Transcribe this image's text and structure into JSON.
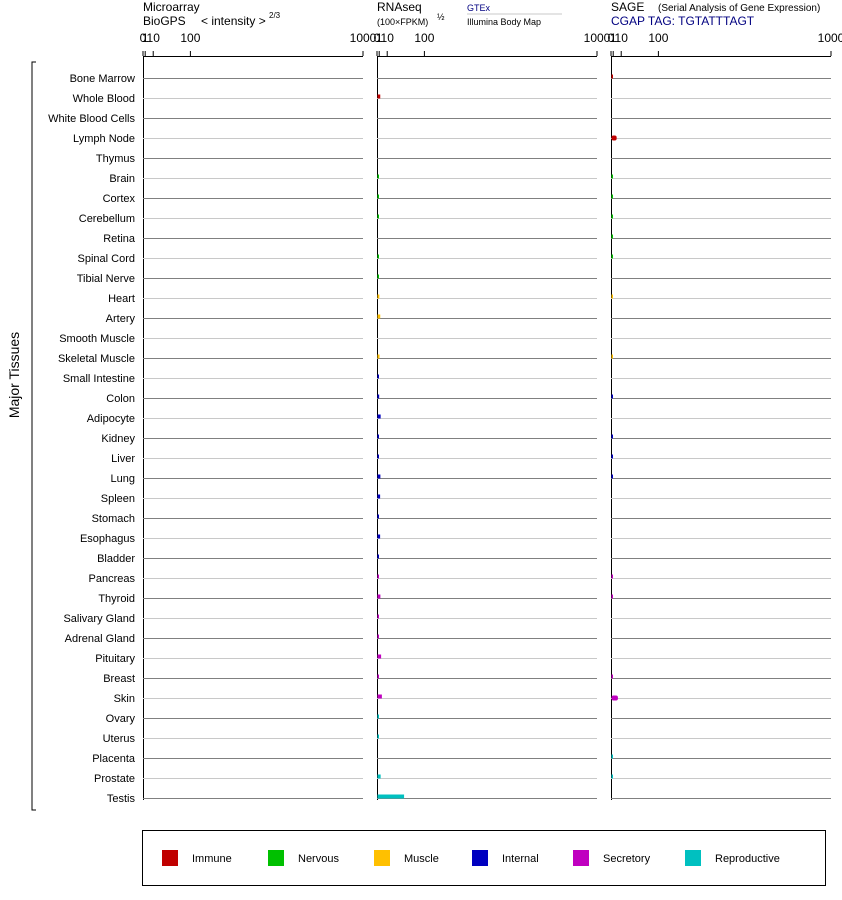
{
  "header": {
    "microarray": {
      "line1": "Microarray",
      "line2a": "BioGPS",
      "line2b": "< intensity >",
      "exponent": "2/3"
    },
    "rnaseq": {
      "line1": "RNAseq",
      "line2": "(100×FPKM)",
      "exponent": "½",
      "link_top": "GTEx",
      "link_bottom": "Illumina Body Map"
    },
    "sage": {
      "line1a": "SAGE",
      "line1b": "(Serial Analysis of Gene Expression)",
      "line2": "CGAP TAG: TGTATTTAGT"
    }
  },
  "ylabel": "Major Tissues",
  "colors": {
    "Immune": "#c00000",
    "Nervous": "#00c000",
    "Muscle": "#ffc000",
    "Internal": "#0000c0",
    "Secretory": "#c000c0",
    "Reproductive": "#00c0c0",
    "header_link": "#000080",
    "grid_dark": "#808080",
    "grid_light": "#c8c8c8"
  },
  "legend": {
    "items": [
      "Immune",
      "Nervous",
      "Muscle",
      "Internal",
      "Secretory",
      "Reproductive"
    ]
  },
  "chart_data": [
    {
      "type": "bar",
      "title": "Microarray BioGPS",
      "xscale": "power 2/3",
      "xticks": [
        "0",
        "1",
        "10",
        "100",
        "1000"
      ],
      "xlim": [
        0,
        1000
      ],
      "categories": [
        "Bone Marrow",
        "Whole Blood",
        "White Blood Cells",
        "Lymph Node",
        "Thymus",
        "Brain",
        "Cortex",
        "Cerebellum",
        "Retina",
        "Spinal Cord",
        "Tibial Nerve",
        "Heart",
        "Artery",
        "Smooth Muscle",
        "Skeletal Muscle",
        "Small Intestine",
        "Colon",
        "Adipocyte",
        "Kidney",
        "Liver",
        "Lung",
        "Spleen",
        "Stomach",
        "Esophagus",
        "Bladder",
        "Pancreas",
        "Thyroid",
        "Salivary Gland",
        "Adrenal Gland",
        "Pituitary",
        "Breast",
        "Skin",
        "Ovary",
        "Uterus",
        "Placenta",
        "Prostate",
        "Testis"
      ],
      "groups": [
        "Immune",
        "Immune",
        "Immune",
        "Immune",
        "Immune",
        "Nervous",
        "Nervous",
        "Nervous",
        "Nervous",
        "Nervous",
        "Nervous",
        "Muscle",
        "Muscle",
        "Muscle",
        "Muscle",
        "Internal",
        "Internal",
        "Internal",
        "Internal",
        "Internal",
        "Internal",
        "Internal",
        "Internal",
        "Internal",
        "Internal",
        "Secretory",
        "Secretory",
        "Secretory",
        "Secretory",
        "Secretory",
        "Secretory",
        "Secretory",
        "Reproductive",
        "Reproductive",
        "Reproductive",
        "Reproductive",
        "Reproductive"
      ],
      "values": [
        null,
        null,
        null,
        null,
        null,
        null,
        null,
        null,
        null,
        null,
        null,
        null,
        null,
        null,
        null,
        null,
        null,
        null,
        null,
        null,
        null,
        null,
        null,
        null,
        null,
        null,
        null,
        null,
        null,
        null,
        null,
        null,
        null,
        null,
        null,
        null,
        null
      ]
    },
    {
      "type": "bar",
      "title": "RNAseq",
      "xscale": "power 2/3",
      "xticks": [
        "0",
        "1",
        "10",
        "100",
        "1000"
      ],
      "xlim": [
        0,
        1000
      ],
      "categories": [
        "Bone Marrow",
        "Whole Blood",
        "White Blood Cells",
        "Lymph Node",
        "Thymus",
        "Brain",
        "Cortex",
        "Cerebellum",
        "Retina",
        "Spinal Cord",
        "Tibial Nerve",
        "Heart",
        "Artery",
        "Smooth Muscle",
        "Skeletal Muscle",
        "Small Intestine",
        "Colon",
        "Adipocyte",
        "Kidney",
        "Liver",
        "Lung",
        "Spleen",
        "Stomach",
        "Esophagus",
        "Bladder",
        "Pancreas",
        "Thyroid",
        "Salivary Gland",
        "Adrenal Gland",
        "Pituitary",
        "Breast",
        "Skin",
        "Ovary",
        "Uterus",
        "Placenta",
        "Prostate",
        "Testis"
      ],
      "groups": [
        "Immune",
        "Immune",
        "Immune",
        "Immune",
        "Immune",
        "Nervous",
        "Nervous",
        "Nervous",
        "Nervous",
        "Nervous",
        "Nervous",
        "Muscle",
        "Muscle",
        "Muscle",
        "Muscle",
        "Internal",
        "Internal",
        "Internal",
        "Internal",
        "Internal",
        "Internal",
        "Internal",
        "Internal",
        "Internal",
        "Internal",
        "Secretory",
        "Secretory",
        "Secretory",
        "Secretory",
        "Secretory",
        "Secretory",
        "Secretory",
        "Reproductive",
        "Reproductive",
        "Reproductive",
        "Reproductive",
        "Reproductive"
      ],
      "values": [
        null,
        1.4,
        null,
        null,
        null,
        0.45,
        0.02,
        0.02,
        null,
        0.02,
        0.02,
        0.75,
        1.4,
        null,
        0.85,
        0.03,
        0.65,
        1.7,
        0.03,
        0.03,
        1.5,
        1.3,
        0.02,
        1.3,
        0.03,
        0.03,
        1.5,
        0.03,
        0.02,
        2.1,
        0.03,
        2.8,
        0.02,
        0.02,
        null,
        1.7,
        42
      ]
    },
    {
      "type": "bar",
      "title": "SAGE",
      "xscale": "power 2/3",
      "xticks": [
        "0",
        "1",
        "10",
        "100",
        "1000"
      ],
      "xlim": [
        0,
        1000
      ],
      "categories": [
        "Bone Marrow",
        "Whole Blood",
        "White Blood Cells",
        "Lymph Node",
        "Thymus",
        "Brain",
        "Cortex",
        "Cerebellum",
        "Retina",
        "Spinal Cord",
        "Tibial Nerve",
        "Heart",
        "Artery",
        "Smooth Muscle",
        "Skeletal Muscle",
        "Small Intestine",
        "Colon",
        "Adipocyte",
        "Kidney",
        "Liver",
        "Lung",
        "Spleen",
        "Stomach",
        "Esophagus",
        "Bladder",
        "Pancreas",
        "Thyroid",
        "Salivary Gland",
        "Adrenal Gland",
        "Pituitary",
        "Breast",
        "Skin",
        "Ovary",
        "Uterus",
        "Placenta",
        "Prostate",
        "Testis"
      ],
      "groups": [
        "Immune",
        "Immune",
        "Immune",
        "Immune",
        "Immune",
        "Nervous",
        "Nervous",
        "Nervous",
        "Nervous",
        "Nervous",
        "Nervous",
        "Muscle",
        "Muscle",
        "Muscle",
        "Muscle",
        "Internal",
        "Internal",
        "Internal",
        "Internal",
        "Internal",
        "Internal",
        "Internal",
        "Internal",
        "Internal",
        "Internal",
        "Secretory",
        "Secretory",
        "Secretory",
        "Secretory",
        "Secretory",
        "Secretory",
        "Secretory",
        "Reproductive",
        "Reproductive",
        "Reproductive",
        "Reproductive",
        "Reproductive"
      ],
      "values": [
        0.02,
        null,
        null,
        3.6,
        null,
        0.02,
        0.02,
        0.02,
        0.02,
        0.02,
        null,
        0.005,
        null,
        null,
        0.005,
        null,
        0.02,
        null,
        0.02,
        0.02,
        0.02,
        null,
        null,
        null,
        null,
        0.02,
        0.02,
        null,
        null,
        null,
        0.02,
        5.0,
        null,
        null,
        0.02,
        0.02,
        null
      ]
    }
  ]
}
